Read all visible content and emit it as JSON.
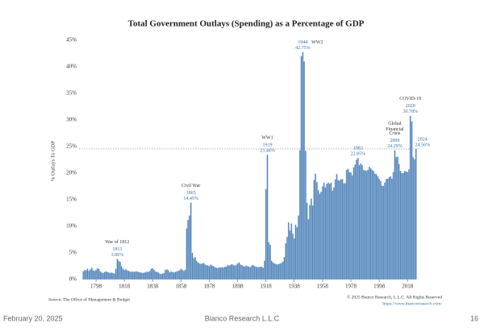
{
  "chart_data": {
    "type": "bar",
    "title": "Total Government Outlays (Spending) as a Percentage of GDP",
    "y_label": "% Outlays To GDP",
    "color": "#4f82b8",
    "x": [
      1789,
      1790,
      1791,
      1792,
      1793,
      1794,
      1795,
      1796,
      1797,
      1798,
      1799,
      1800,
      1801,
      1802,
      1803,
      1804,
      1805,
      1806,
      1807,
      1808,
      1809,
      1810,
      1811,
      1812,
      1813,
      1814,
      1815,
      1816,
      1817,
      1818,
      1819,
      1820,
      1821,
      1822,
      1823,
      1824,
      1825,
      1826,
      1827,
      1828,
      1829,
      1830,
      1831,
      1832,
      1833,
      1834,
      1835,
      1836,
      1837,
      1838,
      1839,
      1840,
      1841,
      1842,
      1843,
      1844,
      1845,
      1846,
      1847,
      1848,
      1849,
      1850,
      1851,
      1852,
      1853,
      1854,
      1855,
      1856,
      1857,
      1858,
      1859,
      1860,
      1861,
      1862,
      1863,
      1864,
      1865,
      1866,
      1867,
      1868,
      1869,
      1870,
      1871,
      1872,
      1873,
      1874,
      1875,
      1876,
      1877,
      1878,
      1879,
      1880,
      1881,
      1882,
      1883,
      1884,
      1885,
      1886,
      1887,
      1888,
      1889,
      1890,
      1891,
      1892,
      1893,
      1894,
      1895,
      1896,
      1897,
      1898,
      1899,
      1900,
      1901,
      1902,
      1903,
      1904,
      1905,
      1906,
      1907,
      1908,
      1909,
      1910,
      1911,
      1912,
      1913,
      1914,
      1915,
      1916,
      1917,
      1918,
      1919,
      1920,
      1921,
      1922,
      1923,
      1924,
      1925,
      1926,
      1927,
      1928,
      1929,
      1930,
      1931,
      1932,
      1933,
      1934,
      1935,
      1936,
      1937,
      1938,
      1939,
      1940,
      1941,
      1942,
      1943,
      1944,
      1945,
      1946,
      1947,
      1948,
      1949,
      1950,
      1951,
      1952,
      1953,
      1954,
      1955,
      1956,
      1957,
      1958,
      1959,
      1960,
      1961,
      1962,
      1963,
      1964,
      1965,
      1966,
      1967,
      1968,
      1969,
      1970,
      1971,
      1972,
      1973,
      1974,
      1975,
      1976,
      1977,
      1978,
      1979,
      1980,
      1981,
      1982,
      1983,
      1984,
      1985,
      1986,
      1987,
      1988,
      1989,
      1990,
      1991,
      1992,
      1993,
      1994,
      1995,
      1996,
      1997,
      1998,
      1999,
      2000,
      2001,
      2002,
      2003,
      2004,
      2005,
      2006,
      2007,
      2008,
      2009,
      2010,
      2011,
      2012,
      2013,
      2014,
      2015,
      2016,
      2017,
      2018,
      2019,
      2020,
      2021,
      2022,
      2023,
      2024
    ],
    "values": [
      1.5,
      1.8,
      1.7,
      2.0,
      1.6,
      1.9,
      2.2,
      1.7,
      1.6,
      1.8,
      2.1,
      2.0,
      1.5,
      1.3,
      1.2,
      1.4,
      1.5,
      1.4,
      1.3,
      1.2,
      1.3,
      1.2,
      1.1,
      2.0,
      3.86,
      3.5,
      3.3,
      2.5,
      2.0,
      1.8,
      1.9,
      1.7,
      1.6,
      1.5,
      1.4,
      1.5,
      1.4,
      1.5,
      1.5,
      1.4,
      1.3,
      1.3,
      1.2,
      1.3,
      1.3,
      1.5,
      1.4,
      1.6,
      2.0,
      2.1,
      1.8,
      1.5,
      1.4,
      1.3,
      1.1,
      1.0,
      1.1,
      1.2,
      1.8,
      1.9,
      1.7,
      1.3,
      1.5,
      1.4,
      1.3,
      1.4,
      1.5,
      1.6,
      1.7,
      2.0,
      1.8,
      1.6,
      1.8,
      9.6,
      11.2,
      12.0,
      14.45,
      5.0,
      4.0,
      4.2,
      3.5,
      3.2,
      3.0,
      2.9,
      3.0,
      3.1,
      2.8,
      2.7,
      2.6,
      2.5,
      2.8,
      2.6,
      2.5,
      2.3,
      2.2,
      2.1,
      2.3,
      2.2,
      2.3,
      2.2,
      2.4,
      2.4,
      2.7,
      2.6,
      2.7,
      2.9,
      2.7,
      2.6,
      2.7,
      3.0,
      3.2,
      2.8,
      2.7,
      2.5,
      2.4,
      2.6,
      2.5,
      2.4,
      2.3,
      2.6,
      2.7,
      2.5,
      2.4,
      2.3,
      2.3,
      2.4,
      2.4,
      2.2,
      3.5,
      17.0,
      23.44,
      7.0,
      6.5,
      3.5,
      3.2,
      3.0,
      2.9,
      2.8,
      2.9,
      3.0,
      3.1,
      3.4,
      4.2,
      6.8,
      8.0,
      10.7,
      9.2,
      10.5,
      8.6,
      7.7,
      10.3,
      9.8,
      12.0,
      24.3,
      42.0,
      42.75,
      41.0,
      24.2,
      14.4,
      11.3,
      14.0,
      15.2,
      13.9,
      18.7,
      19.9,
      18.3,
      16.8,
      16.1,
      16.5,
      17.5,
      18.2,
      17.3,
      18.0,
      18.2,
      18.0,
      18.2,
      16.7,
      17.3,
      18.8,
      19.8,
      18.7,
      18.6,
      18.8,
      18.9,
      18.1,
      18.1,
      20.6,
      20.8,
      20.2,
      20.1,
      19.6,
      21.1,
      21.6,
      22.5,
      22.85,
      21.5,
      21.8,
      21.5,
      20.6,
      20.5,
      20.4,
      20.6,
      21.2,
      20.9,
      20.6,
      20.4,
      19.9,
      19.8,
      19.4,
      18.9,
      18.5,
      17.6,
      17.6,
      18.2,
      18.9,
      18.9,
      19.2,
      19.4,
      19.0,
      20.2,
      24.29,
      23.0,
      23.1,
      21.7,
      20.4,
      20.0,
      20.0,
      20.4,
      20.3,
      20.2,
      20.7,
      30.78,
      29.7,
      23.0,
      22.6,
      24.56
    ],
    "xlim": [
      1786,
      2027
    ],
    "xticks": [
      1798,
      1818,
      1838,
      1858,
      1878,
      1898,
      1918,
      1938,
      1958,
      1978,
      1998,
      2018
    ],
    "ylim": [
      0,
      45
    ],
    "yticks": [
      {
        "value": 0,
        "label": "0%"
      },
      {
        "value": 5,
        "label": "5%"
      },
      {
        "value": 10,
        "label": "10%"
      },
      {
        "value": 15,
        "label": "15%"
      },
      {
        "value": 20,
        "label": "20%"
      },
      {
        "value": 25,
        "label": "25%"
      },
      {
        "value": 30,
        "label": "30%"
      },
      {
        "value": 35,
        "label": "35%"
      },
      {
        "value": 40,
        "label": "40%"
      },
      {
        "value": 45,
        "label": "45%"
      }
    ],
    "annotations": [
      {
        "label": [
          "War of 1812"
        ],
        "year": 1813,
        "value_label": "3.86%"
      },
      {
        "label": [
          "Civil War"
        ],
        "year": 1865,
        "value_label": "14.45%"
      },
      {
        "label": [
          "WW1"
        ],
        "year": 1919,
        "value_label": "23.44%"
      },
      {
        "year": 1944,
        "value_label": "42.75%",
        "side_label": "WW2"
      },
      {
        "year": 1983,
        "value_label": "22.85%"
      },
      {
        "label": [
          "Global",
          "Financial",
          "Crisis"
        ],
        "year": 2009,
        "value_label": "24.29%"
      },
      {
        "label": [
          "COVID-19"
        ],
        "year": 2020,
        "value_label": "30.78%"
      },
      {
        "year": 2024,
        "value_label": "24.56%"
      }
    ],
    "source": "Source: The Office of Management & Budget",
    "copyright": "© 2025 Bianco Research, L.L.C. All Rights Reserved",
    "url": "https://www.biancoresearch.com/"
  },
  "footer": {
    "date": "February 20, 2025",
    "company": "Bianco Research L.L.C",
    "page": "16"
  }
}
